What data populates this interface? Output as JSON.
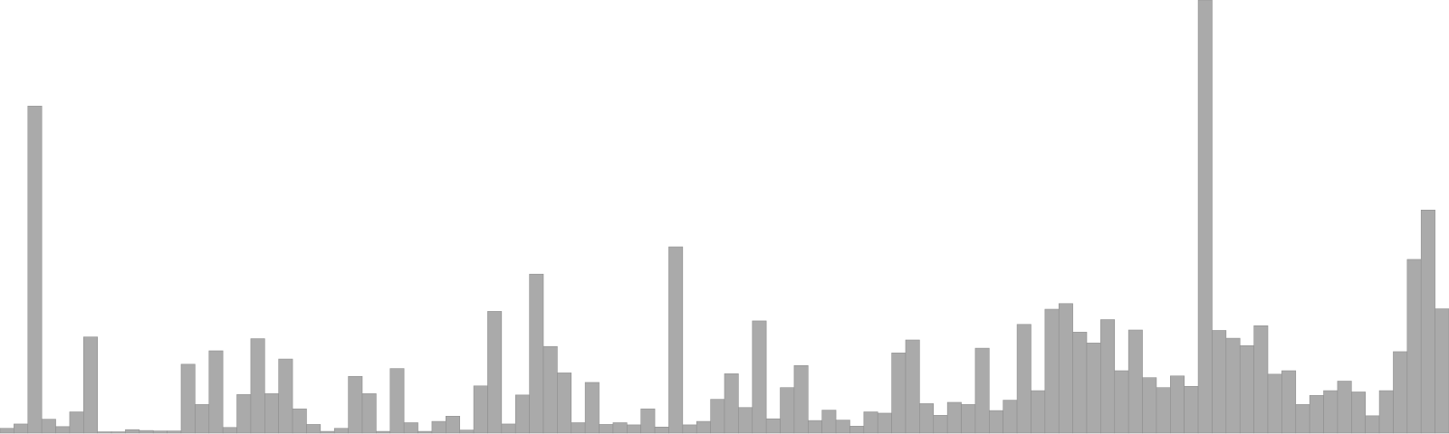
{
  "chart_data": {
    "type": "bar",
    "title": "",
    "xlabel": "",
    "ylabel": "",
    "ylim": [
      0,
      100
    ],
    "grid": false,
    "legend": "none",
    "bar_color": "#aaaaaa",
    "bar_edge_color": "#8f8f8f",
    "values": [
      1.1,
      2.1,
      75.5,
      3.2,
      1.5,
      4.9,
      22.2,
      0.3,
      0.3,
      0.8,
      0.6,
      0.5,
      0.5,
      15.9,
      6.6,
      19.0,
      1.3,
      8.9,
      21.8,
      9.1,
      17.1,
      5.6,
      2.0,
      0.4,
      1.1,
      13.1,
      9.1,
      0.4,
      14.9,
      2.4,
      0.4,
      2.7,
      3.9,
      0.7,
      10.9,
      28.1,
      2.1,
      8.8,
      36.7,
      20.0,
      13.9,
      2.4,
      11.7,
      2.0,
      2.4,
      1.9,
      5.6,
      1.4,
      43.0,
      1.9,
      2.7,
      7.8,
      13.7,
      5.9,
      25.9,
      3.3,
      10.5,
      15.6,
      2.9,
      5.3,
      3.0,
      1.6,
      4.9,
      4.6,
      18.5,
      21.5,
      6.8,
      4.1,
      7.1,
      6.6,
      19.6,
      5.2,
      7.6,
      25.1,
      9.8,
      28.6,
      29.9,
      23.3,
      20.8,
      26.2,
      14.4,
      23.8,
      12.8,
      10.5,
      13.2,
      10.8,
      100,
      23.7,
      21.9,
      20.2,
      24.8,
      13.6,
      14.4,
      6.6,
      8.7,
      9.8,
      12.0,
      9.5,
      4.0,
      9.8,
      18.8,
      40.1,
      51.5,
      28.7
    ]
  }
}
